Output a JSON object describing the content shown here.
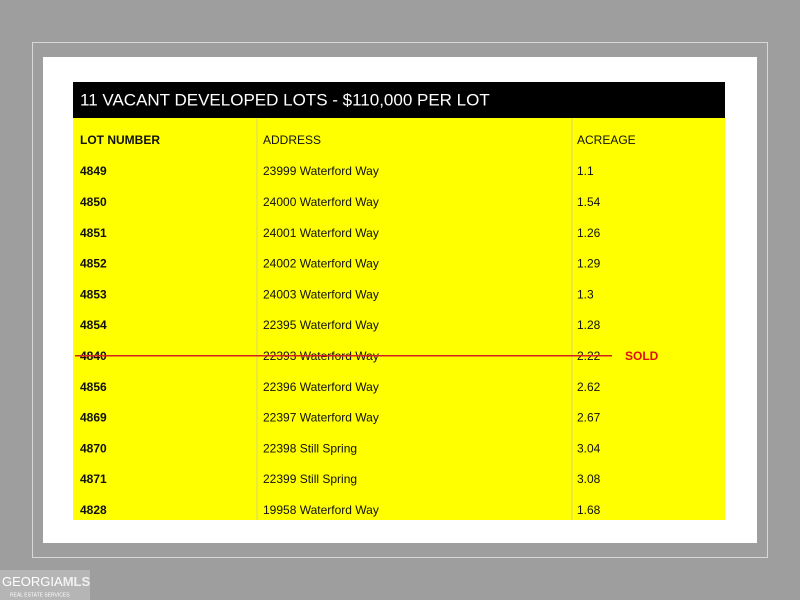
{
  "table": {
    "title": "11 VACANT DEVELOPED LOTS - $110,000 PER LOT",
    "columns": [
      "LOT NUMBER",
      "ADDRESS",
      "ACREAGE"
    ],
    "rows": [
      [
        "4849",
        "23999 Waterford Way",
        "1.1"
      ],
      [
        "4850",
        "24000 Waterford Way",
        "1.54"
      ],
      [
        "4851",
        "24001 Waterford Way",
        "1.26"
      ],
      [
        "4852",
        "24002 Waterford Way",
        "1.29"
      ],
      [
        "4853",
        "24003 Waterford Way",
        "1.3"
      ],
      [
        "4854",
        "22395 Waterford Way",
        "1.28"
      ],
      [
        "4840",
        "22393 Waterford Way",
        "2.22",
        "SOLD"
      ],
      [
        "4856",
        "22396 Waterford Way",
        "2.62"
      ],
      [
        "4869",
        "22397 Waterford Way",
        "2.67"
      ],
      [
        "4870",
        "22398 Still Spring",
        "3.04"
      ],
      [
        "4871",
        "22399 Still Spring",
        "3.08"
      ],
      [
        "4828",
        "19958 Waterford Way",
        "1.68"
      ]
    ]
  },
  "watermark": {
    "brand_left": "GEORGIA",
    "brand_right": "MLS",
    "tagline": "REAL ESTATE SERVICES"
  }
}
